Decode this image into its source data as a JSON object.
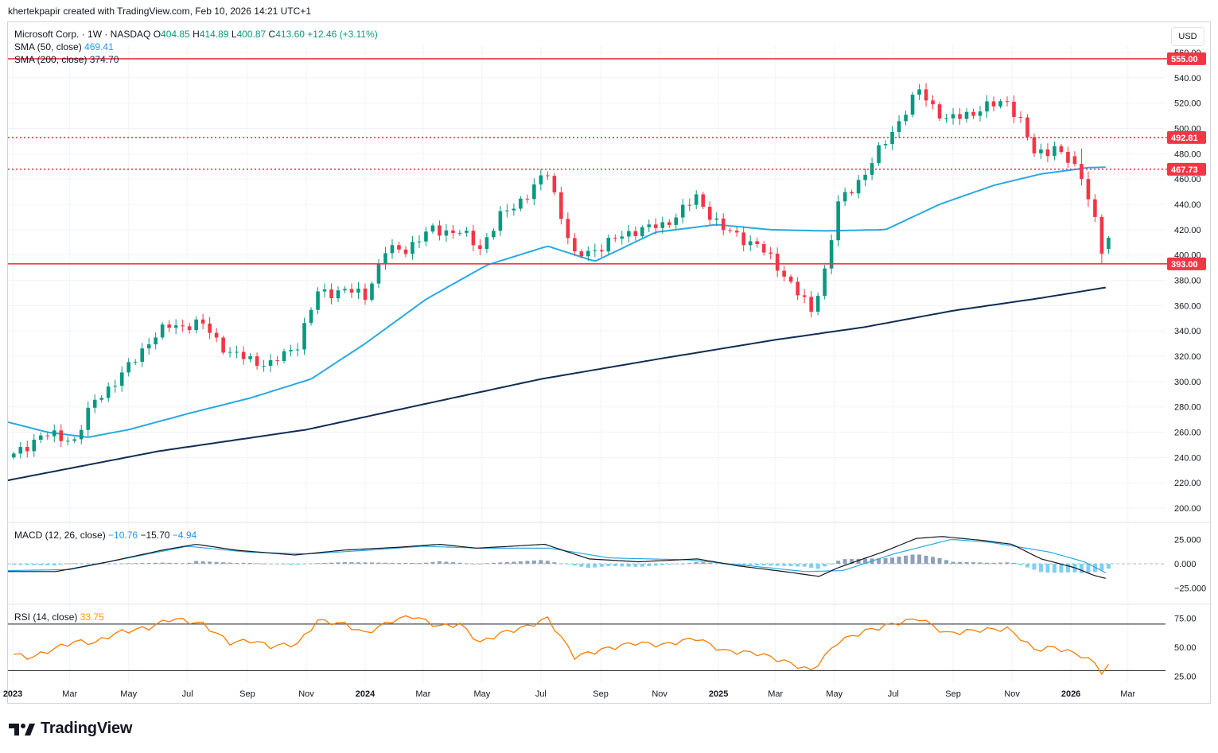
{
  "header": {
    "caption": "khertekpapir created with TradingView.com, Feb 10, 2026 14:21 UTC+1"
  },
  "legend": {
    "symbol": "Microsoft Corp. · 1W · NASDAQ",
    "o_label": "O",
    "o_value": "404.85",
    "h_label": "H",
    "h_value": "414.89",
    "l_label": "L",
    "l_value": "400.87",
    "c_label": "C",
    "c_value": "413.60",
    "change": "+12.46 (+3.11%)",
    "sma50_label": "SMA (50, close)",
    "sma50_value": "469.41",
    "sma200_label": "SMA (200, close)",
    "sma200_value": "374.70",
    "macd_label": "MACD (12, 26, close)",
    "macd_v1": "−10.76",
    "macd_v2": "−15.70",
    "macd_v3": "−4.94",
    "rsi_label": "RSI (14, close)",
    "rsi_value": "33.75"
  },
  "currency_button": "USD",
  "brand": "TradingView",
  "colors": {
    "up": "#089981",
    "down": "#f23645",
    "sma50": "#29a9e1",
    "sma200": "#0f2d52",
    "hline": "#f23645",
    "rsi": "#f57c00",
    "macd": "#131722",
    "signal": "#29a9e1"
  },
  "chart_data": [
    {
      "type": "candlestick",
      "title": "Microsoft Corp. · 1W · NASDAQ",
      "ylim": [
        190,
        565
      ],
      "y_ticks": [
        200,
        220,
        240,
        260,
        280,
        300,
        320,
        340,
        360,
        380,
        400,
        420,
        440,
        460,
        480,
        500,
        520,
        540,
        560
      ],
      "x_ticks": [
        "2023",
        "Mar",
        "May",
        "Jul",
        "Sep",
        "Nov",
        "2024",
        "Mar",
        "May",
        "Jul",
        "Sep",
        "Nov",
        "2025",
        "Mar",
        "May",
        "Jul",
        "Sep",
        "Nov",
        "2026",
        "Mar"
      ],
      "x_tick_dates": [
        "2023-01-01",
        "2023-03-01",
        "2023-05-01",
        "2023-07-01",
        "2023-09-01",
        "2023-11-01",
        "2024-01-01",
        "2024-03-01",
        "2024-05-01",
        "2024-07-01",
        "2024-09-01",
        "2024-11-01",
        "2025-01-01",
        "2025-03-01",
        "2025-05-01",
        "2025-07-01",
        "2025-09-01",
        "2025-11-01",
        "2026-01-01",
        "2026-03-01"
      ],
      "x_range": [
        "2022-12-27",
        "2026-04-09"
      ],
      "bold_ticks": [
        "2023",
        "2024",
        "2025",
        "2026"
      ],
      "horizontal_lines": [
        {
          "value": 555.0,
          "label": "555.00",
          "style": "solid"
        },
        {
          "value": 492.81,
          "label": "492.81",
          "style": "dotted"
        },
        {
          "value": 467.73,
          "label": "467.73",
          "style": "dotted"
        },
        {
          "value": 393.0,
          "label": "393.00",
          "style": "solid"
        }
      ],
      "close_anchors": [
        [
          "2023-01-02",
          241
        ],
        [
          "2023-01-30",
          258
        ],
        [
          "2023-03-06",
          254
        ],
        [
          "2023-03-27",
          285
        ],
        [
          "2023-04-24",
          305
        ],
        [
          "2023-05-22",
          332
        ],
        [
          "2023-06-12",
          344
        ],
        [
          "2023-07-17",
          345
        ],
        [
          "2023-08-14",
          322
        ],
        [
          "2023-09-25",
          313
        ],
        [
          "2023-10-23",
          330
        ],
        [
          "2023-11-13",
          370
        ],
        [
          "2023-12-11",
          372
        ],
        [
          "2024-01-01",
          368
        ],
        [
          "2024-01-22",
          403
        ],
        [
          "2024-02-12",
          405
        ],
        [
          "2024-03-11",
          420
        ],
        [
          "2024-04-08",
          418
        ],
        [
          "2024-04-29",
          406
        ],
        [
          "2024-05-20",
          430
        ],
        [
          "2024-06-17",
          448
        ],
        [
          "2024-07-08",
          465
        ],
        [
          "2024-08-05",
          398
        ],
        [
          "2024-09-02",
          407
        ],
        [
          "2024-10-07",
          420
        ],
        [
          "2024-11-04",
          423
        ],
        [
          "2024-12-09",
          445
        ],
        [
          "2025-01-06",
          420
        ],
        [
          "2025-02-10",
          408
        ],
        [
          "2025-03-10",
          385
        ],
        [
          "2025-04-07",
          355
        ],
        [
          "2025-04-21",
          388
        ],
        [
          "2025-05-05",
          440
        ],
        [
          "2025-06-02",
          465
        ],
        [
          "2025-06-30",
          498
        ],
        [
          "2025-07-28",
          530
        ],
        [
          "2025-08-25",
          506
        ],
        [
          "2025-09-29",
          515
        ],
        [
          "2025-10-27",
          522
        ],
        [
          "2025-11-10",
          505
        ],
        [
          "2025-11-24",
          480
        ],
        [
          "2025-12-15",
          485
        ],
        [
          "2026-01-12",
          462
        ],
        [
          "2026-01-26",
          430
        ],
        [
          "2026-02-02",
          401
        ],
        [
          "2026-02-09",
          413.6
        ]
      ],
      "weekly_candles": [
        [
          "2026-01-05",
          478,
          482,
          470,
          472
        ],
        [
          "2026-01-12",
          472,
          484,
          455,
          460
        ],
        [
          "2026-01-19",
          460,
          466,
          438,
          444
        ],
        [
          "2026-01-26",
          444,
          448,
          426,
          430
        ],
        [
          "2026-02-02",
          430,
          432,
          393,
          401
        ],
        [
          "2026-02-09",
          404.85,
          414.89,
          400.87,
          413.6
        ]
      ],
      "sma50_anchors": [
        [
          "2022-12-27",
          268
        ],
        [
          "2023-02-06",
          260
        ],
        [
          "2023-03-20",
          256
        ],
        [
          "2023-05-01",
          262
        ],
        [
          "2023-07-03",
          275
        ],
        [
          "2023-09-04",
          287
        ],
        [
          "2023-11-06",
          302
        ],
        [
          "2024-01-01",
          330
        ],
        [
          "2024-03-04",
          365
        ],
        [
          "2024-05-06",
          392
        ],
        [
          "2024-07-08",
          407
        ],
        [
          "2024-08-26",
          395
        ],
        [
          "2024-10-28",
          418
        ],
        [
          "2024-12-30",
          424
        ],
        [
          "2025-02-24",
          420
        ],
        [
          "2025-04-21",
          419
        ],
        [
          "2025-06-23",
          420
        ],
        [
          "2025-08-18",
          440
        ],
        [
          "2025-10-13",
          455
        ],
        [
          "2025-12-01",
          464
        ],
        [
          "2026-01-19",
          469
        ],
        [
          "2026-02-09",
          469.41
        ]
      ],
      "sma200_anchors": [
        [
          "2022-12-27",
          222
        ],
        [
          "2023-06-01",
          245
        ],
        [
          "2023-11-01",
          262
        ],
        [
          "2024-03-01",
          282
        ],
        [
          "2024-07-01",
          302
        ],
        [
          "2024-11-01",
          318
        ],
        [
          "2025-03-01",
          333
        ],
        [
          "2025-06-01",
          343
        ],
        [
          "2025-09-01",
          356
        ],
        [
          "2025-12-01",
          366
        ],
        [
          "2026-02-09",
          374.7
        ]
      ]
    },
    {
      "type": "line",
      "title": "MACD (12, 26, close)",
      "ylim": [
        -40,
        40
      ],
      "y_ticks": [
        25.0,
        0.0,
        -25.0
      ],
      "y_tick_labels": [
        "25.000",
        "0.000",
        "−25.000"
      ],
      "macd_anchors": [
        [
          "2022-12-27",
          -8
        ],
        [
          "2023-02-15",
          -8
        ],
        [
          "2023-04-10",
          2
        ],
        [
          "2023-06-05",
          14
        ],
        [
          "2023-07-10",
          20
        ],
        [
          "2023-08-20",
          14
        ],
        [
          "2023-10-20",
          9
        ],
        [
          "2023-12-10",
          14
        ],
        [
          "2024-02-05",
          17
        ],
        [
          "2024-03-18",
          20
        ],
        [
          "2024-04-25",
          16
        ],
        [
          "2024-06-01",
          18
        ],
        [
          "2024-07-05",
          20
        ],
        [
          "2024-08-20",
          5
        ],
        [
          "2024-10-10",
          2
        ],
        [
          "2024-12-10",
          5
        ],
        [
          "2025-01-20",
          -2
        ],
        [
          "2025-03-10",
          -8
        ],
        [
          "2025-04-15",
          -13
        ],
        [
          "2025-05-05",
          -4
        ],
        [
          "2025-06-20",
          12
        ],
        [
          "2025-07-25",
          26
        ],
        [
          "2025-08-20",
          28
        ],
        [
          "2025-10-01",
          24
        ],
        [
          "2025-11-01",
          20
        ],
        [
          "2025-12-01",
          5
        ],
        [
          "2026-01-05",
          -4
        ],
        [
          "2026-01-25",
          -12
        ],
        [
          "2026-02-09",
          -15.7
        ]
      ],
      "signal_anchors": [
        [
          "2022-12-27",
          -7
        ],
        [
          "2023-03-01",
          -6
        ],
        [
          "2023-05-01",
          6
        ],
        [
          "2023-07-01",
          18
        ],
        [
          "2023-09-01",
          12
        ],
        [
          "2023-11-01",
          10
        ],
        [
          "2024-01-05",
          14
        ],
        [
          "2024-03-01",
          18
        ],
        [
          "2024-05-01",
          16
        ],
        [
          "2024-07-10",
          16
        ],
        [
          "2024-09-10",
          6
        ],
        [
          "2024-12-01",
          4
        ],
        [
          "2025-02-01",
          -2
        ],
        [
          "2025-04-01",
          -8
        ],
        [
          "2025-05-10",
          -7
        ],
        [
          "2025-07-01",
          10
        ],
        [
          "2025-08-30",
          25
        ],
        [
          "2025-10-10",
          22
        ],
        [
          "2025-12-10",
          12
        ],
        [
          "2026-01-15",
          2
        ],
        [
          "2026-02-09",
          -10.76
        ]
      ]
    },
    {
      "type": "line",
      "title": "RSI (14, close)",
      "ylim": [
        20,
        85
      ],
      "y_ticks": [
        75,
        50,
        25
      ],
      "y_tick_labels": [
        "75.00",
        "50.00",
        "25.00"
      ],
      "bands": [
        70,
        30
      ],
      "rsi_anchors": [
        [
          "2022-12-27",
          45
        ],
        [
          "2023-01-20",
          41
        ],
        [
          "2023-02-10",
          48
        ],
        [
          "2023-03-06",
          55
        ],
        [
          "2023-03-27",
          54
        ],
        [
          "2023-04-20",
          63
        ],
        [
          "2023-05-22",
          67
        ],
        [
          "2023-06-15",
          75
        ],
        [
          "2023-07-17",
          70
        ],
        [
          "2023-08-14",
          54
        ],
        [
          "2023-09-05",
          56
        ],
        [
          "2023-09-25",
          51
        ],
        [
          "2023-10-23",
          53
        ],
        [
          "2023-11-13",
          73
        ],
        [
          "2023-12-11",
          70
        ],
        [
          "2024-01-01",
          62
        ],
        [
          "2024-01-29",
          73
        ],
        [
          "2024-02-19",
          77
        ],
        [
          "2024-03-18",
          68
        ],
        [
          "2024-04-08",
          70
        ],
        [
          "2024-04-29",
          54
        ],
        [
          "2024-05-20",
          62
        ],
        [
          "2024-06-17",
          68
        ],
        [
          "2024-07-08",
          75
        ],
        [
          "2024-08-05",
          42
        ],
        [
          "2024-09-02",
          48
        ],
        [
          "2024-10-07",
          54
        ],
        [
          "2024-11-04",
          52
        ],
        [
          "2024-12-09",
          58
        ],
        [
          "2025-01-06",
          47
        ],
        [
          "2025-02-10",
          45
        ],
        [
          "2025-03-10",
          38
        ],
        [
          "2025-04-07",
          30
        ],
        [
          "2025-04-21",
          42
        ],
        [
          "2025-05-05",
          55
        ],
        [
          "2025-06-02",
          64
        ],
        [
          "2025-06-30",
          70
        ],
        [
          "2025-07-28",
          75
        ],
        [
          "2025-08-25",
          62
        ],
        [
          "2025-09-29",
          65
        ],
        [
          "2025-10-27",
          66
        ],
        [
          "2025-11-10",
          58
        ],
        [
          "2025-11-24",
          48
        ],
        [
          "2025-12-15",
          50
        ],
        [
          "2026-01-12",
          43
        ],
        [
          "2026-01-26",
          36
        ],
        [
          "2026-02-02",
          29
        ],
        [
          "2026-02-09",
          33.75
        ]
      ]
    }
  ]
}
